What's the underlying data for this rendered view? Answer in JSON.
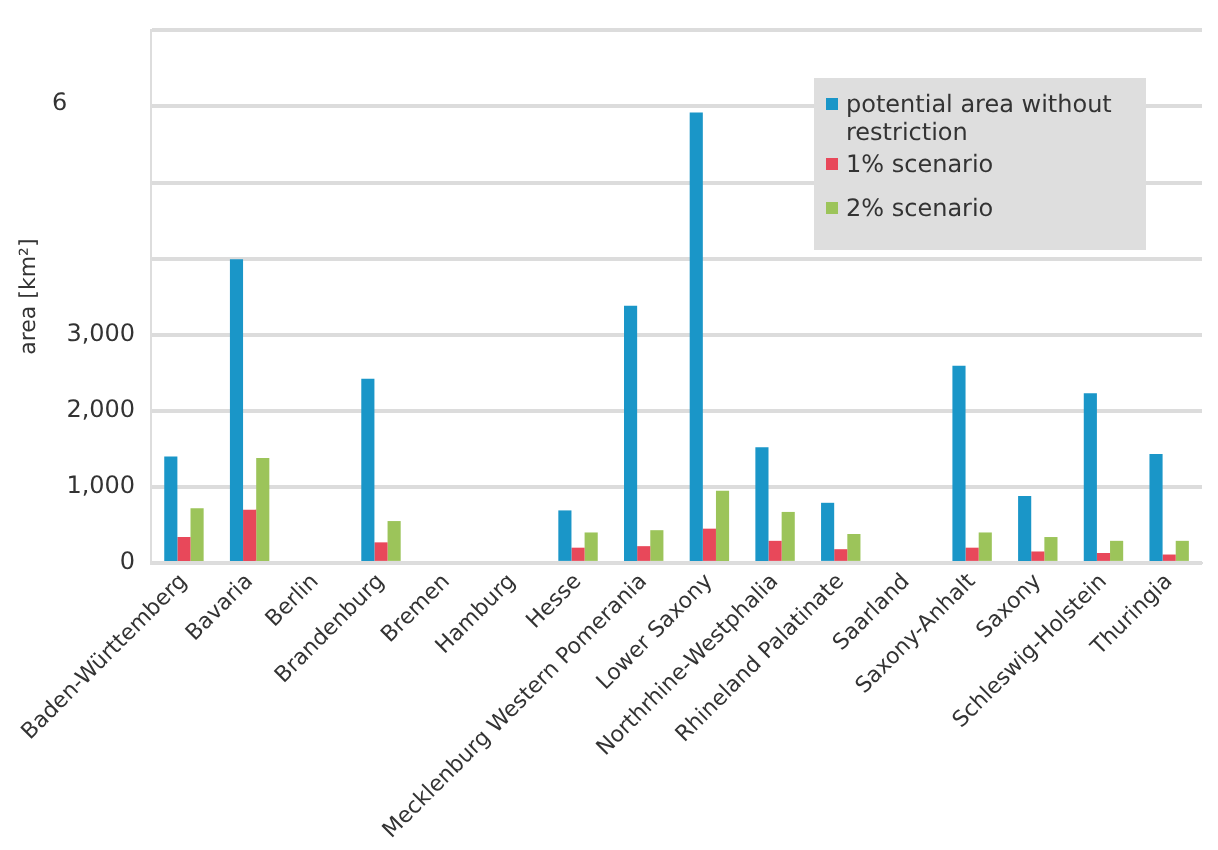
{
  "chart_data": {
    "type": "bar",
    "ylabel": "area [km²]",
    "categories": [
      "Baden-Württemberg",
      "Bavaria",
      "Berlin",
      "Brandenburg",
      "Bremen",
      "Hamburg",
      "Hesse",
      "Mecklenburg Western Pomerania",
      "Lower Saxony",
      "Northrhine-Westphalia",
      "Rhineland Palatinate",
      "Saarland",
      "Saxony-Anhalt",
      "Saxony",
      "Schleswig-Holstein",
      "Thuringia"
    ],
    "series": [
      {
        "name": "potential area without restriction",
        "color": "#1a96c8",
        "values": [
          1400,
          3990,
          0,
          2420,
          0,
          0,
          690,
          3380,
          5920,
          1520,
          790,
          null,
          2590,
          880,
          2230,
          1430
        ]
      },
      {
        "name": "1% scenario",
        "color": "#e8485a",
        "values": [
          340,
          700,
          0,
          270,
          0,
          0,
          200,
          220,
          450,
          290,
          180,
          null,
          200,
          150,
          130,
          110
        ]
      },
      {
        "name": "2% scenario",
        "color": "#9cc45a",
        "values": [
          720,
          1380,
          0,
          550,
          0,
          0,
          400,
          430,
          950,
          670,
          380,
          null,
          400,
          340,
          290,
          290
        ]
      }
    ],
    "ylim": [
      0,
      7000
    ],
    "yticks": [
      0,
      {
        "value": 1000,
        "label": "1,000"
      },
      {
        "value": 2000,
        "label": "2,000"
      },
      {
        "value": 3000,
        "label": "3,000"
      },
      {
        "value": 4000,
        "label": null
      },
      {
        "value": 5000,
        "label": null
      },
      {
        "value": 6000,
        "label": null
      },
      {
        "value": 7000,
        "label": null
      }
    ],
    "annotations": [
      "6"
    ],
    "grid": "y",
    "legend": "top right"
  }
}
